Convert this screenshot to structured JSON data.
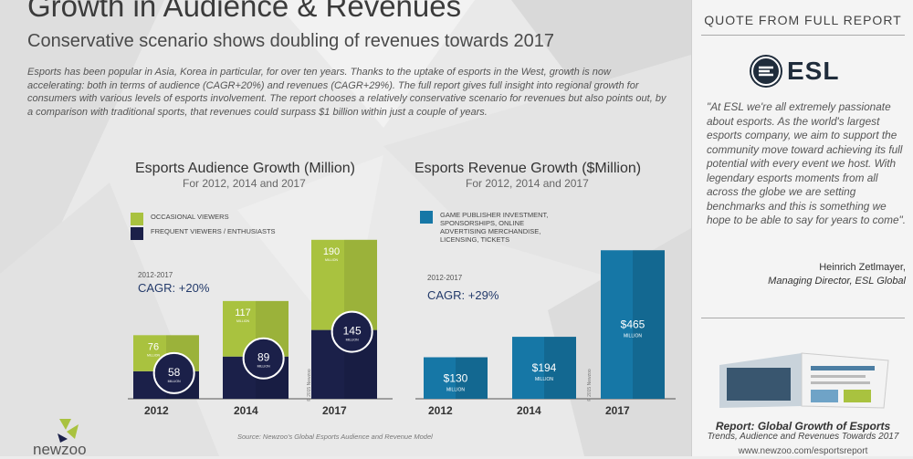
{
  "header": {
    "title": "Growth in Audience & Revenues",
    "subtitle": "Conservative scenario shows doubling of revenues towards 2017"
  },
  "intro_text": "Esports has been popular in Asia, Korea in particular, for over ten years. Thanks to the uptake of esports in the West, growth is now accelerating: both in terms of audience (CAGR+20%) and revenues (CAGR+29%). The full report gives full insight into regional growth for consumers with various levels of esports involvement. The report chooses a relatively conservative scenario for revenues but also points out, by a comparison with traditional sports, that revenues could surpass $1 billion within just a couple of years.",
  "colors": {
    "occasional": "#a9c23f",
    "enthusiasts": "#1b2049",
    "revenue": "#1677a6"
  },
  "chart_data": [
    {
      "type": "bar",
      "title": "Esports Audience Growth (Million)",
      "subtitle": "For 2012, 2014 and 2017",
      "categories": [
        "2012",
        "2014",
        "2017"
      ],
      "stacked": true,
      "series": [
        {
          "name": "FREQUENT VIEWERS / ENTHUSIASTS",
          "values": [
            58,
            89,
            145
          ],
          "labels": [
            "58",
            "89",
            "145"
          ]
        },
        {
          "name": "OCCASIONAL VIEWERS",
          "values": [
            76,
            117,
            190
          ],
          "labels": [
            "76",
            "117",
            "190"
          ]
        }
      ],
      "unit_label": "MILLION",
      "cagr_period": "2012-2017",
      "cagr": "CAGR: +20%",
      "copyright": "© 2015 Newzoo"
    },
    {
      "type": "bar",
      "title": "Esports Revenue Growth ($Million)",
      "subtitle": "For 2012, 2014 and 2017",
      "categories": [
        "2012",
        "2014",
        "2017"
      ],
      "series": [
        {
          "name": "GAME PUBLISHER INVESTMENT, SPONSORSHIPS, ONLINE ADVERTISING MERCHANDISE, LICENSING, TICKETS",
          "values": [
            130,
            194,
            465
          ],
          "labels": [
            "$130",
            "$194",
            "$465"
          ]
        }
      ],
      "unit_label": "MILLION",
      "cagr_period": "2012-2017",
      "cagr": "CAGR: +29%",
      "copyright": "© 2015 Newzoo"
    }
  ],
  "source": "Source: Newzoo's Global Esports Audience and Revenue Model",
  "logo": {
    "text": "newzoo"
  },
  "sidebar": {
    "heading": "QUOTE FROM FULL REPORT",
    "brand": "ESL",
    "quote": "\"At ESL we're all extremely passionate about esports. As the world's largest esports company, we aim to support the community move toward achieving its full potential with every event we host. With legendary esports moments from all across the globe we are setting benchmarks and this is something we hope to be able to say for years to come\".",
    "author_name": "Heinrich Zetlmayer,",
    "author_role": "Managing Director, ESL Global",
    "report_title": "Report: Global Growth of Esports",
    "report_subtitle": "Trends, Audience and Revenues Towards 2017",
    "report_url": "www.newzoo.com/esportsreport"
  }
}
